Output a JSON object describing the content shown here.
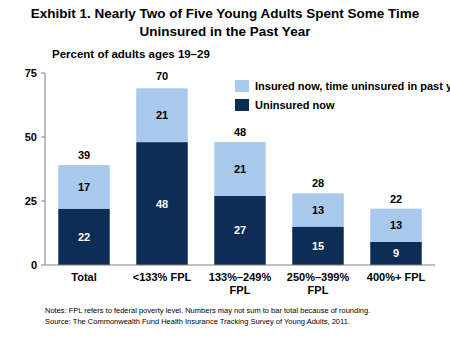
{
  "chart_data": {
    "type": "bar",
    "title": "Exhibit 1. Nearly Two of Five Young Adults Spent Some Time Uninsured in the Past Year",
    "y_label": "Percent of adults ages 19–29",
    "categories": [
      "Total",
      "<133% FPL",
      "133%–249% FPL",
      "250%–399% FPL",
      "400%+ FPL"
    ],
    "series": [
      {
        "name": "Uninsured now",
        "color": "#0c2d55",
        "values": [
          22,
          48,
          27,
          15,
          9
        ]
      },
      {
        "name": "Insured now, time uninsured in past year",
        "color": "#a8c8ec",
        "values": [
          17,
          21,
          21,
          13,
          13
        ]
      }
    ],
    "totals": [
      39,
      70,
      48,
      28,
      22
    ],
    "stacked": true,
    "data_labels": true,
    "legend": "top-right",
    "grid": false,
    "ylim": [
      0,
      75
    ],
    "yticks": [
      0,
      25,
      50,
      75
    ],
    "notes": [
      "Notes: FPL refers to federal poverty level. Numbers may not sum to bar total because of rounding.",
      "Source: The Commonwealth Fund Health Insurance Tracking Survey of Young Adults, 2011."
    ]
  }
}
